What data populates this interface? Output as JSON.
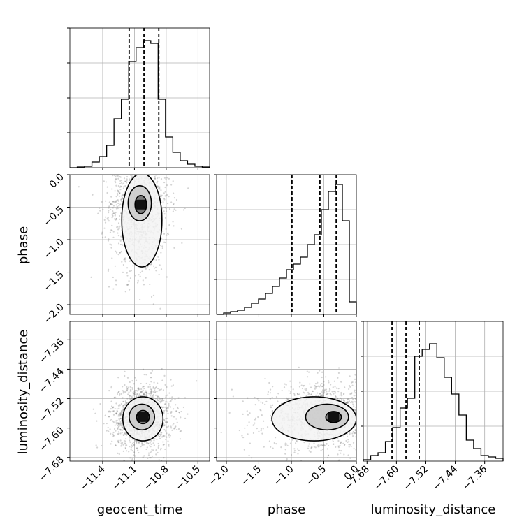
{
  "chart_data": {
    "type": "corner",
    "parameters": [
      "geocent_time",
      "phase",
      "luminosity_distance"
    ],
    "ranges": {
      "geocent_time": [
        -11.71,
        -10.39
      ],
      "phase": [
        -2.15,
        0.0
      ],
      "luminosity_distance": [
        -7.69,
        -7.31
      ]
    },
    "ticks": {
      "geocent_time": [
        "-11.4",
        "-11.1",
        "-10.8",
        "-10.5"
      ],
      "phase": [
        "-2.0",
        "-1.5",
        "-1.0",
        "-0.5",
        "0.0"
      ],
      "luminosity_distance": [
        "-7.68",
        "-7.60",
        "-7.52",
        "-7.44",
        "-7.36"
      ]
    },
    "quantiles": {
      "geocent_time": [
        -11.15,
        -11.01,
        -10.87
      ],
      "phase": [
        -0.99,
        -0.56,
        -0.31
      ],
      "luminosity_distance": [
        -7.612,
        -7.574,
        -7.538
      ]
    },
    "histograms": {
      "geocent_time": [
        0.0,
        0.005,
        0.01,
        0.04,
        0.08,
        0.16,
        0.35,
        0.49,
        0.76,
        0.86,
        0.91,
        0.89,
        0.49,
        0.22,
        0.11,
        0.05,
        0.025,
        0.01,
        0.005
      ],
      "phase": [
        0.0,
        0.01,
        0.02,
        0.03,
        0.05,
        0.08,
        0.11,
        0.15,
        0.2,
        0.26,
        0.32,
        0.36,
        0.41,
        0.5,
        0.57,
        0.75,
        0.88,
        0.93,
        0.67,
        0.09
      ],
      "luminosity_distance": [
        0.01,
        0.04,
        0.06,
        0.14,
        0.24,
        0.38,
        0.45,
        0.75,
        0.8,
        0.84,
        0.74,
        0.6,
        0.48,
        0.33,
        0.15,
        0.09,
        0.04,
        0.03,
        0.02
      ]
    },
    "contours_2d": {
      "phase_vs_geocent_time": [
        {
          "level": "inner",
          "cx": -11.04,
          "cy": -0.46,
          "rx": 0.055,
          "ry": 0.14
        },
        {
          "level": "mid",
          "cx": -11.05,
          "cy": -0.44,
          "rx": 0.11,
          "ry": 0.27
        },
        {
          "level": "outer",
          "cx": -11.03,
          "cy": -0.7,
          "rx": 0.19,
          "ry": 0.72
        }
      ],
      "luminosity_distance_vs_geocent_time": [
        {
          "level": "inner",
          "cx": -11.02,
          "cy": -7.57,
          "rx": 0.06,
          "ry": 0.018
        },
        {
          "level": "mid",
          "cx": -11.03,
          "cy": -7.57,
          "rx": 0.12,
          "ry": 0.035
        },
        {
          "level": "outer",
          "cx": -11.02,
          "cy": -7.575,
          "rx": 0.19,
          "ry": 0.06
        }
      ],
      "luminosity_distance_vs_phase": [
        {
          "level": "inner",
          "cx": -0.35,
          "cy": -7.57,
          "rx": 0.12,
          "ry": 0.015
        },
        {
          "level": "mid",
          "cx": -0.45,
          "cy": -7.57,
          "rx": 0.33,
          "ry": 0.035
        },
        {
          "level": "outer",
          "cx": -0.65,
          "cy": -7.575,
          "rx": 0.65,
          "ry": 0.06
        }
      ]
    },
    "grid": true
  }
}
